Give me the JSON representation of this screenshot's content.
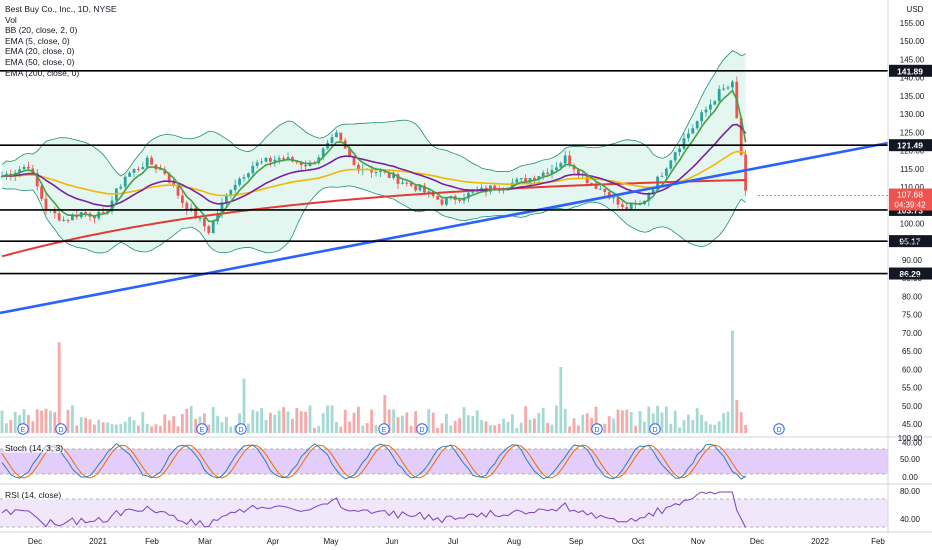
{
  "legend": {
    "title": "Best Buy Co., Inc., 1D, NYSE",
    "items": [
      "Vol",
      "BB (20, close, 2, 0)",
      "EMA (5, close, 0)",
      "EMA (20, close, 0)",
      "EMA (50, close, 0)",
      "EMA (200, close, 0)"
    ]
  },
  "price_axis": {
    "currency": "USD",
    "ticks": [
      "155.00",
      "150.00",
      "145.00",
      "140.00",
      "135.00",
      "130.00",
      "125.00",
      "120.00",
      "115.00",
      "110.00",
      "105.00",
      "100.00",
      "95.00",
      "90.00",
      "85.00",
      "80.00",
      "75.00",
      "70.00",
      "65.00",
      "60.00",
      "55.00",
      "50.00",
      "45.00",
      "40.00"
    ],
    "level_labels": [
      "141.89",
      "121.49",
      "103.73",
      "95.17",
      "86.29"
    ],
    "last_price": "107.68",
    "countdown": "04:39:42"
  },
  "time_axis": {
    "labels": [
      "Dec",
      "2021",
      "Feb",
      "Mar",
      "Apr",
      "May",
      "Jun",
      "Jul",
      "Aug",
      "Sep",
      "Oct",
      "Nov",
      "Dec",
      "2022",
      "Feb"
    ]
  },
  "stoch": {
    "label": "Stoch (14, 3, 3)",
    "ticks": [
      "100.00",
      "50.00",
      "0.00"
    ]
  },
  "rsi": {
    "label": "RSI (14, close)",
    "ticks": [
      "80.00",
      "40.00"
    ]
  },
  "event_markers": [
    "E",
    "D",
    "E",
    "D",
    "E",
    "D",
    "D",
    "D",
    "D"
  ],
  "colors": {
    "up": "#26a69a",
    "down": "#ef5350",
    "levels": "#000000",
    "trendline": "#2962ff",
    "ema5": "#43a047",
    "ema20": "#7b1fa2",
    "ema50": "#f2b705",
    "ema200": "#e53935",
    "bb": "#1f8f7a",
    "bb_fill": "#e3f6ef",
    "stoch_k": "#2e7db8",
    "stoch_d": "#ef6c00",
    "stoch_band": "#e3cdfa",
    "rsi": "#7e3fbf",
    "rsi_band": "#f1e7fb",
    "last_price_bg": "#ef5350"
  },
  "chart_data": {
    "type": "line",
    "title": "Best Buy Co., Inc., 1D, NYSE",
    "x": [
      "Dec",
      "2021",
      "Feb",
      "Mar",
      "Apr",
      "May",
      "Jun",
      "Jul",
      "Aug",
      "Sep",
      "Oct",
      "Nov",
      "Dec"
    ],
    "series": [
      {
        "name": "Price",
        "values": [
          113,
          103,
          117,
          98,
          113,
          117,
          114,
          108,
          110,
          116,
          102,
          132,
          108
        ]
      },
      {
        "name": "EMA (200, close, 0)",
        "values": [
          91,
          95,
          99,
          102,
          105,
          108,
          110,
          111,
          112,
          112,
          112,
          114,
          114
        ]
      }
    ],
    "horizontal_levels": [
      141.89,
      121.49,
      103.73,
      95.17,
      86.29
    ],
    "last_price": 107.68,
    "ylim": [
      40,
      155
    ]
  }
}
